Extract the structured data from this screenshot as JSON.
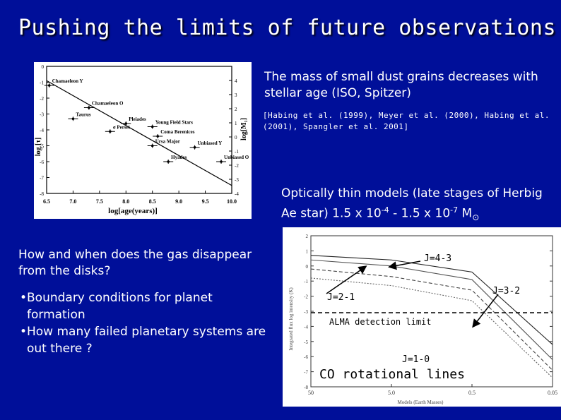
{
  "slide": {
    "title": "Pushing the limits of future observations",
    "colors": {
      "background": "#000f99",
      "text": "#ffffff"
    }
  },
  "left_text": {
    "question": "How and when does the gas disappear from the disks?",
    "bullets": [
      "Boundary conditions for planet formation",
      "How many failed planetary systems are out there ?"
    ]
  },
  "right_text": {
    "dust_text": "The mass of small dust grains decreases with stellar age (ISO, Spitzer)",
    "references": "[Habing et al. (1999), Meyer et al. (2000), Habing et al. (2001), Spangler et al. 2001]",
    "models_text": "Optically thin models (late stages of Herbig Ae star) 1.5 x 10",
    "models_exp1": "-4",
    "models_mid": " - 1.5 x 10",
    "models_exp2": "-7",
    "models_unit": " M",
    "sun_symbol": "⊙"
  },
  "chart_data": [
    {
      "type": "scatter",
      "xlabel": "log[age(years)]",
      "ylabel": "log [τ]",
      "ylabel_right": "log[M₁]",
      "x_ticks": [
        "6.5",
        "7.0",
        "7.5",
        "8.0",
        "8.5",
        "9.0",
        "9.5",
        "10.0"
      ],
      "y_ticks_left": [
        "0",
        "-1",
        "-2",
        "-3",
        "-4",
        "-5",
        "-6",
        "-7",
        "-8"
      ],
      "y_ticks_right": [
        "4",
        "3",
        "2",
        "1",
        "0",
        "-1",
        "-2",
        "-3",
        "-4"
      ],
      "xlim": [
        6.5,
        10.0
      ],
      "ylim": [
        -8,
        0
      ],
      "points": [
        {
          "label": "Chamaeleon Y",
          "x": 6.55,
          "y": -1.2
        },
        {
          "label": "Chamaeleon O",
          "x": 7.3,
          "y": -2.6
        },
        {
          "label": "Pleiades",
          "x": 8.0,
          "y": -3.6
        },
        {
          "label": "Young Field Stars",
          "x": 8.5,
          "y": -3.8
        },
        {
          "label": "Taurus",
          "x": 7.0,
          "y": -3.3
        },
        {
          "label": "σ Persei",
          "x": 7.7,
          "y": -4.1
        },
        {
          "label": "Coma Berenices",
          "x": 8.6,
          "y": -4.4
        },
        {
          "label": "Ursa Major",
          "x": 8.5,
          "y": -5.0
        },
        {
          "label": "Unbiased Y",
          "x": 9.3,
          "y": -5.1
        },
        {
          "label": "Hyades",
          "x": 8.8,
          "y": -6.0
        },
        {
          "label": "Unbiased O",
          "x": 9.8,
          "y": -6.0
        }
      ],
      "fit_line": [
        {
          "x": 6.5,
          "y": -0.9
        },
        {
          "x": 10.0,
          "y": -7.5
        }
      ]
    },
    {
      "type": "line",
      "xlabel": "Models (Earth Masses)",
      "ylabel": "Integrated flux log intensity (K)",
      "x_ticks": [
        "50",
        "5.0",
        "0.5",
        "0.05"
      ],
      "y_ticks": [
        "2",
        "1",
        "0",
        "-1",
        "-2",
        "-3",
        "-4",
        "-5",
        "-6",
        "-7",
        "-8"
      ],
      "ylim": [
        -8,
        2
      ],
      "series": [
        {
          "name": "J=4-3",
          "x": [
            50,
            5.0,
            0.5,
            0.05
          ],
          "y": [
            0.7,
            0.4,
            -0.4,
            -5.2
          ]
        },
        {
          "name": "J=3-2",
          "x": [
            50,
            5.0,
            0.5,
            0.05
          ],
          "y": [
            0.4,
            0.0,
            -0.9,
            -6.2
          ]
        },
        {
          "name": "J=2-1",
          "x": [
            50,
            5.0,
            0.5,
            0.05
          ],
          "y": [
            -0.2,
            -0.7,
            -1.6,
            -6.9
          ]
        },
        {
          "name": "J=1-0",
          "x": [
            50,
            5.0,
            0.5,
            0.05
          ],
          "y": [
            -0.8,
            -1.3,
            -2.3,
            -7.4
          ]
        }
      ],
      "threshold": {
        "label": "ALMA detection limit",
        "y": -2.7
      },
      "caption": "CO rotational lines",
      "annotations": [
        "J=4-3",
        "J=3-2",
        "J=2-1",
        "J=1-0",
        "ALMA detection limit"
      ]
    }
  ]
}
